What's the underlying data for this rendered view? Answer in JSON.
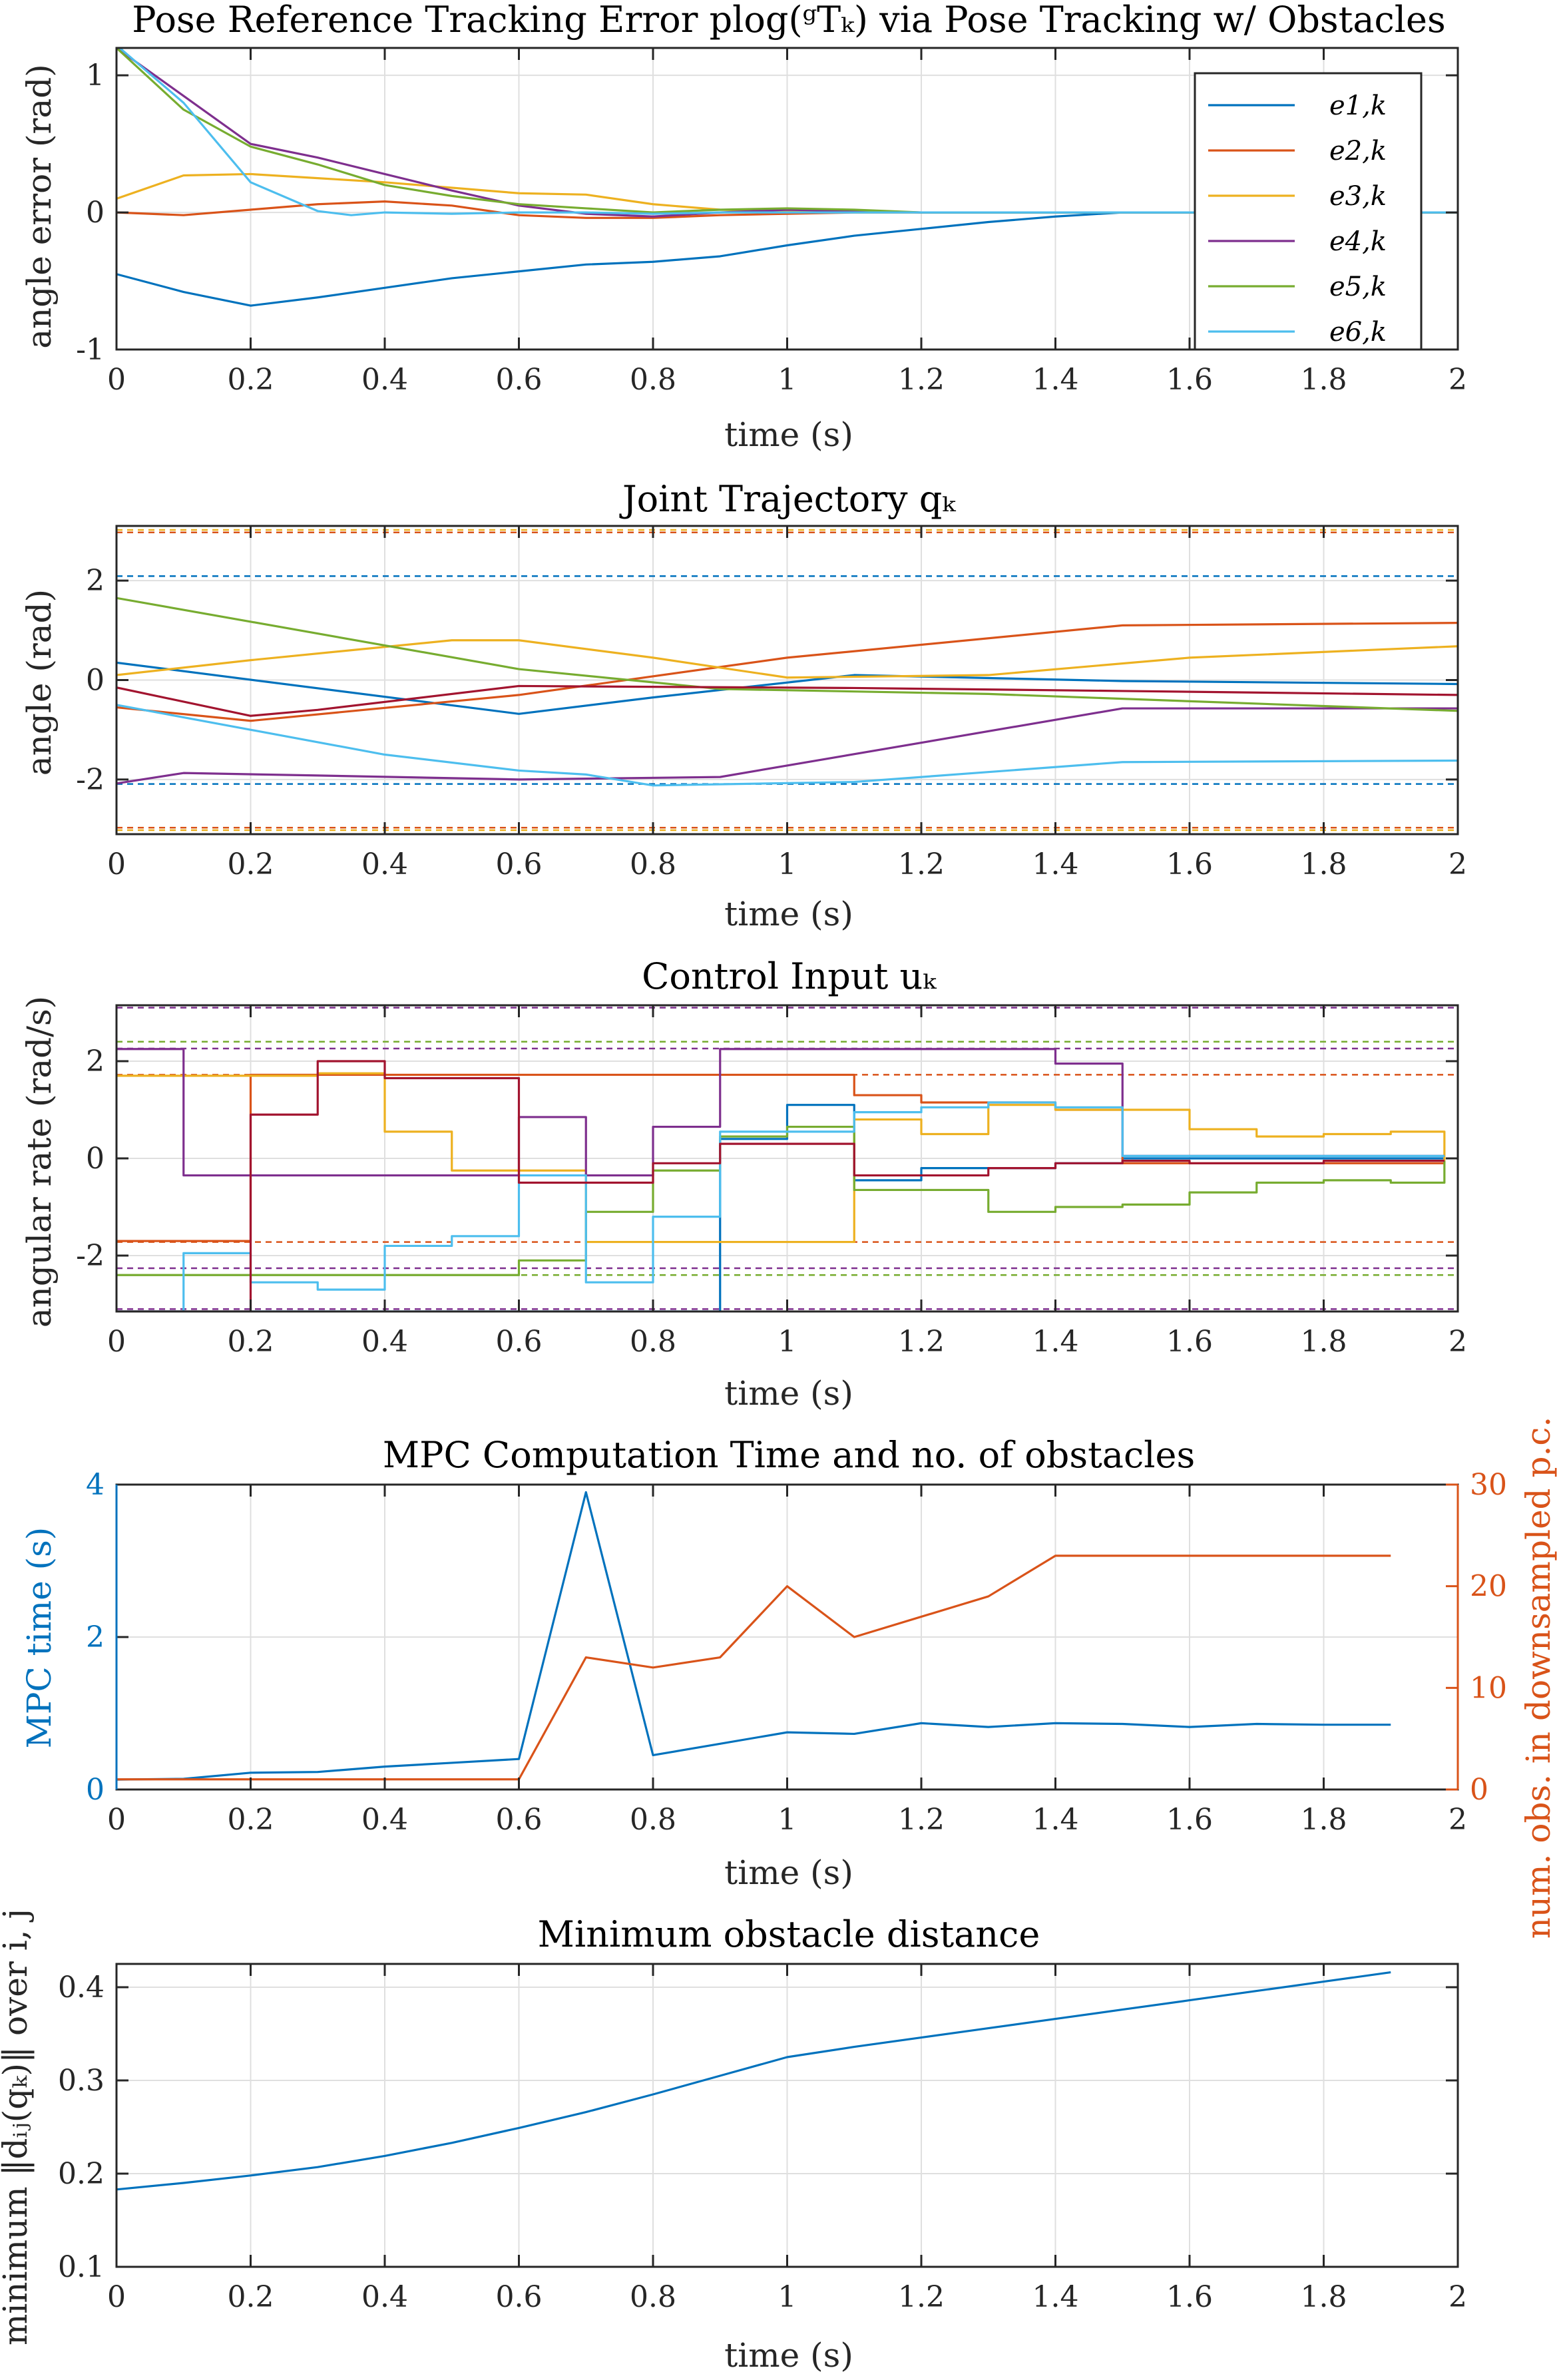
{
  "colors": [
    "#0072BD",
    "#D95319",
    "#EDB120",
    "#7E2F8E",
    "#77AC30",
    "#4DBEEE",
    "#A2142F"
  ],
  "chart_data": [
    {
      "type": "line",
      "title": "Pose Reference Tracking Error plog(ᵍTₖ) via Pose Tracking w/ Obstacles",
      "xlabel": "time (s)",
      "ylabel": "angle error (rad)",
      "xlim": [
        0,
        2
      ],
      "ylim": [
        -1,
        1.2
      ],
      "xticks": [
        0,
        0.2,
        0.4,
        0.6,
        0.8,
        1,
        1.2,
        1.4,
        1.6,
        1.8,
        2
      ],
      "xticklabels": [
        "0",
        "0.2",
        "0.4",
        "0.6",
        "0.8",
        "1",
        "1.2",
        "1.4",
        "1.6",
        "1.8",
        "2"
      ],
      "yticks": [
        -1,
        0,
        1
      ],
      "yticklabels": [
        "-1",
        "0",
        "1"
      ],
      "grid": true,
      "legend": "top-right",
      "series": [
        {
          "name": "e1,k",
          "x": [
            0,
            0.1,
            0.2,
            0.3,
            0.4,
            0.5,
            0.6,
            0.7,
            0.8,
            0.9,
            1,
            1.1,
            1.2,
            1.3,
            1.4,
            1.5,
            2
          ],
          "y": [
            -0.45,
            -0.58,
            -0.68,
            -0.62,
            -0.55,
            -0.48,
            -0.43,
            -0.38,
            -0.36,
            -0.32,
            -0.24,
            -0.17,
            -0.12,
            -0.07,
            -0.03,
            0,
            0
          ]
        },
        {
          "name": "e2,k",
          "x": [
            0,
            0.1,
            0.2,
            0.3,
            0.4,
            0.5,
            0.6,
            0.7,
            0.8,
            0.9,
            1,
            1.1,
            1.2,
            1.5,
            2
          ],
          "y": [
            0,
            -0.02,
            0.02,
            0.06,
            0.08,
            0.05,
            -0.02,
            -0.04,
            -0.04,
            -0.02,
            -0.01,
            0,
            0,
            0,
            0
          ]
        },
        {
          "name": "e3,k",
          "x": [
            0,
            0.1,
            0.2,
            0.3,
            0.4,
            0.5,
            0.6,
            0.7,
            0.8,
            0.9,
            1,
            1.1,
            1.2,
            1.5,
            2
          ],
          "y": [
            0.1,
            0.27,
            0.28,
            0.25,
            0.22,
            0.18,
            0.14,
            0.13,
            0.06,
            0.02,
            0.01,
            0,
            0,
            0,
            0
          ]
        },
        {
          "name": "e4,k",
          "x": [
            0,
            0.1,
            0.2,
            0.3,
            0.4,
            0.5,
            0.6,
            0.7,
            0.8,
            0.9,
            1,
            1.1,
            1.2,
            1.5,
            2
          ],
          "y": [
            1.2,
            0.85,
            0.5,
            0.4,
            0.28,
            0.16,
            0.05,
            -0.01,
            -0.03,
            0,
            0.02,
            0.01,
            0,
            0,
            0
          ]
        },
        {
          "name": "e5,k",
          "x": [
            0,
            0.1,
            0.2,
            0.3,
            0.4,
            0.5,
            0.6,
            0.7,
            0.8,
            0.9,
            1,
            1.1,
            1.2,
            1.5,
            2
          ],
          "y": [
            1.2,
            0.75,
            0.48,
            0.35,
            0.2,
            0.12,
            0.06,
            0.03,
            0,
            0.02,
            0.03,
            0.02,
            0,
            0,
            0
          ]
        },
        {
          "name": "e6,k",
          "x": [
            0,
            0.1,
            0.2,
            0.3,
            0.35,
            0.4,
            0.5,
            0.6,
            0.7,
            0.8,
            0.9,
            1,
            1.2,
            1.5,
            2
          ],
          "y": [
            1.22,
            0.8,
            0.22,
            0.01,
            -0.02,
            0,
            -0.01,
            0,
            0,
            -0.01,
            0,
            0,
            0,
            0,
            0
          ]
        }
      ]
    },
    {
      "type": "line",
      "title": "Joint Trajectory qₖ",
      "xlabel": "time (s)",
      "ylabel": "angle (rad)",
      "xlim": [
        0,
        2
      ],
      "ylim": [
        -3.1,
        3.1
      ],
      "xticks": [
        0,
        0.2,
        0.4,
        0.6,
        0.8,
        1,
        1.2,
        1.4,
        1.6,
        1.8,
        2
      ],
      "xticklabels": [
        "0",
        "0.2",
        "0.4",
        "0.6",
        "0.8",
        "1",
        "1.2",
        "1.4",
        "1.6",
        "1.8",
        "2"
      ],
      "yticks": [
        -2,
        0,
        2
      ],
      "yticklabels": [
        "-2",
        "0",
        "2"
      ],
      "grid": true,
      "limits": [
        {
          "color_index": 0,
          "values": [
            2.09,
            -2.09
          ]
        },
        {
          "color_index": 1,
          "values": [
            2.97,
            -2.97
          ]
        },
        {
          "color_index": 2,
          "values": [
            3.02,
            -3.02
          ]
        }
      ],
      "series": [
        {
          "x": [
            0,
            0.6,
            0.8,
            1.1,
            1.5,
            2
          ],
          "y": [
            0.35,
            -0.68,
            -0.35,
            0.1,
            -0.02,
            -0.08
          ]
        },
        {
          "x": [
            0,
            0.2,
            0.6,
            1,
            1.5,
            2
          ],
          "y": [
            -0.55,
            -0.82,
            -0.3,
            0.45,
            1.1,
            1.15
          ]
        },
        {
          "x": [
            0,
            0.2,
            0.5,
            0.6,
            0.8,
            1,
            1.3,
            1.6,
            2
          ],
          "y": [
            0.1,
            0.4,
            0.8,
            0.8,
            0.45,
            0.05,
            0.1,
            0.45,
            0.68
          ]
        },
        {
          "x": [
            0,
            0.1,
            0.3,
            0.6,
            0.9,
            1.5,
            2
          ],
          "y": [
            -2.08,
            -1.87,
            -1.92,
            -2,
            -1.95,
            -0.57,
            -0.57
          ]
        },
        {
          "x": [
            0,
            0.6,
            0.9,
            1.3,
            2
          ],
          "y": [
            1.65,
            0.22,
            -0.18,
            -0.28,
            -0.62
          ]
        },
        {
          "x": [
            0,
            0.4,
            0.6,
            0.7,
            0.8,
            1.1,
            1.5,
            2
          ],
          "y": [
            -0.5,
            -1.5,
            -1.82,
            -1.9,
            -2.12,
            -2.05,
            -1.65,
            -1.62
          ]
        },
        {
          "x": [
            0,
            0.2,
            0.3,
            0.6,
            1.1,
            1.5,
            2
          ],
          "y": [
            -0.15,
            -0.72,
            -0.6,
            -0.12,
            -0.16,
            -0.22,
            -0.3
          ]
        }
      ]
    },
    {
      "type": "line",
      "title": "Control Input uₖ",
      "xlabel": "time (s)",
      "ylabel": "angular rate (rad/s)",
      "xlim": [
        0,
        2
      ],
      "ylim": [
        -3.15,
        3.15
      ],
      "xticks": [
        0,
        0.2,
        0.4,
        0.6,
        0.8,
        1,
        1.2,
        1.4,
        1.6,
        1.8,
        2
      ],
      "xticklabels": [
        "0",
        "0.2",
        "0.4",
        "0.6",
        "0.8",
        "1",
        "1.2",
        "1.4",
        "1.6",
        "1.8",
        "2"
      ],
      "yticks": [
        -2,
        0,
        2
      ],
      "yticklabels": [
        "-2",
        "0",
        "2"
      ],
      "grid": true,
      "limits": [
        {
          "color_index": 3,
          "values": [
            3.1,
            -3.1
          ]
        },
        {
          "color_index": 4,
          "values": [
            2.4,
            -2.4
          ]
        },
        {
          "color_index": 3,
          "values": [
            2.26,
            -2.26
          ]
        },
        {
          "color_index": 1,
          "values": [
            1.72,
            -1.72
          ]
        }
      ],
      "series": [
        {
          "x": [
            0,
            0.1,
            0.2,
            0.3,
            0.4,
            0.5,
            0.6,
            0.7,
            0.8,
            0.9,
            1,
            1.1,
            1.2,
            1.3,
            1.4,
            1.5,
            1.6,
            1.7,
            1.8,
            1.9,
            1.98
          ],
          "y": [
            -3.15,
            -3.15,
            -3.15,
            -3.15,
            -3.15,
            -3.15,
            -3.15,
            -3.15,
            -3.15,
            0.4,
            1.1,
            -0.45,
            -0.2,
            -0.2,
            -0.1,
            0,
            0,
            0,
            0,
            0,
            0
          ]
        },
        {
          "x": [
            0,
            0.1,
            0.2,
            0.3,
            0.4,
            0.5,
            0.6,
            0.7,
            0.8,
            0.9,
            1,
            1.1,
            1.2,
            1.3,
            1.4,
            1.5,
            1.6,
            1.7,
            1.8,
            1.9,
            1.98
          ],
          "y": [
            -1.7,
            -1.7,
            1.72,
            1.72,
            1.72,
            1.72,
            1.72,
            1.72,
            1.72,
            1.72,
            1.72,
            1.3,
            1.15,
            1.15,
            1.0,
            -0.1,
            -0.1,
            -0.1,
            -0.1,
            -0.1,
            -0.1
          ]
        },
        {
          "x": [
            0,
            0.1,
            0.2,
            0.3,
            0.4,
            0.5,
            0.6,
            0.7,
            0.8,
            0.9,
            1,
            1.1,
            1.2,
            1.3,
            1.4,
            1.5,
            1.6,
            1.7,
            1.8,
            1.9,
            1.98
          ],
          "y": [
            1.7,
            1.7,
            1.7,
            1.75,
            0.55,
            -0.25,
            -0.25,
            -1.72,
            -1.72,
            -1.72,
            -1.72,
            0.8,
            0.5,
            1.1,
            1.0,
            1.0,
            0.6,
            0.45,
            0.5,
            0.55,
            -0.1
          ]
        },
        {
          "x": [
            0,
            0.1,
            0.2,
            0.3,
            0.4,
            0.5,
            0.6,
            0.7,
            0.8,
            0.9,
            1,
            1.1,
            1.2,
            1.3,
            1.4,
            1.5,
            1.6,
            1.7,
            1.8,
            1.9,
            1.98
          ],
          "y": [
            2.25,
            -0.35,
            -0.35,
            -0.35,
            -0.35,
            -0.35,
            0.85,
            -0.35,
            0.65,
            2.25,
            2.25,
            2.25,
            2.25,
            2.25,
            1.95,
            0.05,
            0.05,
            0.05,
            0.05,
            0.05,
            0.05
          ]
        },
        {
          "x": [
            0,
            0.1,
            0.2,
            0.3,
            0.4,
            0.5,
            0.6,
            0.7,
            0.8,
            0.9,
            1,
            1.1,
            1.2,
            1.3,
            1.4,
            1.5,
            1.6,
            1.7,
            1.8,
            1.9,
            1.98
          ],
          "y": [
            -2.4,
            -2.4,
            -2.4,
            -2.4,
            -2.4,
            -2.4,
            -2.1,
            -1.1,
            -0.25,
            0.45,
            0.65,
            -0.65,
            -0.65,
            -1.1,
            -1.0,
            -0.95,
            -0.7,
            -0.5,
            -0.45,
            -0.5,
            -0.05
          ]
        },
        {
          "x": [
            0,
            0.1,
            0.2,
            0.3,
            0.4,
            0.5,
            0.6,
            0.7,
            0.8,
            0.9,
            1,
            1.1,
            1.2,
            1.3,
            1.4,
            1.5,
            1.6,
            1.7,
            1.8,
            1.9,
            1.98
          ],
          "y": [
            -3.15,
            -1.95,
            -2.55,
            -2.7,
            -1.8,
            -1.6,
            -0.35,
            -2.55,
            -1.2,
            0.55,
            0.55,
            0.95,
            1.05,
            1.15,
            1.05,
            0.05,
            0.05,
            0.05,
            0.05,
            0.05,
            0.05
          ]
        },
        {
          "x": [
            0,
            0.1,
            0.2,
            0.3,
            0.4,
            0.5,
            0.6,
            0.7,
            0.8,
            0.9,
            1,
            1.1,
            1.2,
            1.3,
            1.4,
            1.5,
            1.6,
            1.7,
            1.8,
            1.9,
            1.98
          ],
          "y": [
            -3.15,
            -3.15,
            0.9,
            2.0,
            1.65,
            1.65,
            -0.5,
            -0.5,
            -0.1,
            0.3,
            0.3,
            -0.35,
            -0.35,
            -0.2,
            -0.1,
            -0.05,
            -0.1,
            -0.1,
            -0.05,
            -0.05,
            -0.05
          ]
        }
      ]
    },
    {
      "type": "line",
      "title": "MPC Computation Time and no. of obstacles",
      "xlabel": "time (s)",
      "ylabel": "MPC time (s)",
      "y2label": "num. obs. in downsampled p.c.",
      "xlim": [
        0,
        2
      ],
      "ylim": [
        0,
        4
      ],
      "y2lim": [
        0,
        30
      ],
      "xticks": [
        0,
        0.2,
        0.4,
        0.6,
        0.8,
        1,
        1.2,
        1.4,
        1.6,
        1.8,
        2
      ],
      "xticklabels": [
        "0",
        "0.2",
        "0.4",
        "0.6",
        "0.8",
        "1",
        "1.2",
        "1.4",
        "1.6",
        "1.8",
        "2"
      ],
      "yticks": [
        0,
        2,
        4
      ],
      "yticklabels": [
        "0",
        "2",
        "4"
      ],
      "y2ticks": [
        0,
        10,
        20,
        30
      ],
      "y2ticklabels": [
        "0",
        "10",
        "20",
        "30"
      ],
      "grid": true,
      "series": [
        {
          "axis": "left",
          "x": [
            0,
            0.1,
            0.2,
            0.3,
            0.4,
            0.5,
            0.6,
            0.7,
            0.8,
            0.9,
            1,
            1.1,
            1.2,
            1.3,
            1.4,
            1.5,
            1.6,
            1.7,
            1.8,
            1.9
          ],
          "y": [
            0.13,
            0.14,
            0.22,
            0.23,
            0.3,
            0.35,
            0.4,
            3.9,
            0.45,
            0.6,
            0.75,
            0.73,
            0.87,
            0.82,
            0.87,
            0.86,
            0.82,
            0.86,
            0.85,
            0.85
          ]
        },
        {
          "axis": "right",
          "x": [
            0,
            0.1,
            0.2,
            0.3,
            0.4,
            0.5,
            0.6,
            0.7,
            0.8,
            0.9,
            1,
            1.1,
            1.2,
            1.3,
            1.4,
            1.5,
            1.6,
            1.7,
            1.8,
            1.9
          ],
          "y": [
            1,
            1,
            1,
            1,
            1,
            1,
            1,
            13,
            12,
            13,
            20,
            15,
            17,
            19,
            23,
            23,
            23,
            23,
            23,
            23
          ]
        }
      ]
    },
    {
      "type": "line",
      "title": "Minimum obstacle distance",
      "xlabel": "time (s)",
      "ylabel": "minimum ‖dᵢⱼ(qₖ)‖ over i, j",
      "xlim": [
        0,
        2
      ],
      "ylim": [
        0.1,
        0.425
      ],
      "xticks": [
        0,
        0.2,
        0.4,
        0.6,
        0.8,
        1,
        1.2,
        1.4,
        1.6,
        1.8,
        2
      ],
      "xticklabels": [
        "0",
        "0.2",
        "0.4",
        "0.6",
        "0.8",
        "1",
        "1.2",
        "1.4",
        "1.6",
        "1.8",
        "2"
      ],
      "yticks": [
        0.1,
        0.2,
        0.3,
        0.4
      ],
      "yticklabels": [
        "0.1",
        "0.2",
        "0.3",
        "0.4"
      ],
      "grid": true,
      "series": [
        {
          "x": [
            0,
            0.1,
            0.2,
            0.3,
            0.4,
            0.5,
            0.6,
            0.7,
            0.8,
            0.9,
            1,
            1.1,
            1.2,
            1.3,
            1.4,
            1.5,
            1.6,
            1.7,
            1.8,
            1.9
          ],
          "y": [
            0.183,
            0.19,
            0.198,
            0.207,
            0.219,
            0.233,
            0.249,
            0.266,
            0.285,
            0.305,
            0.325,
            0.336,
            0.346,
            0.356,
            0.366,
            0.376,
            0.386,
            0.396,
            0.406,
            0.416
          ]
        }
      ]
    }
  ]
}
